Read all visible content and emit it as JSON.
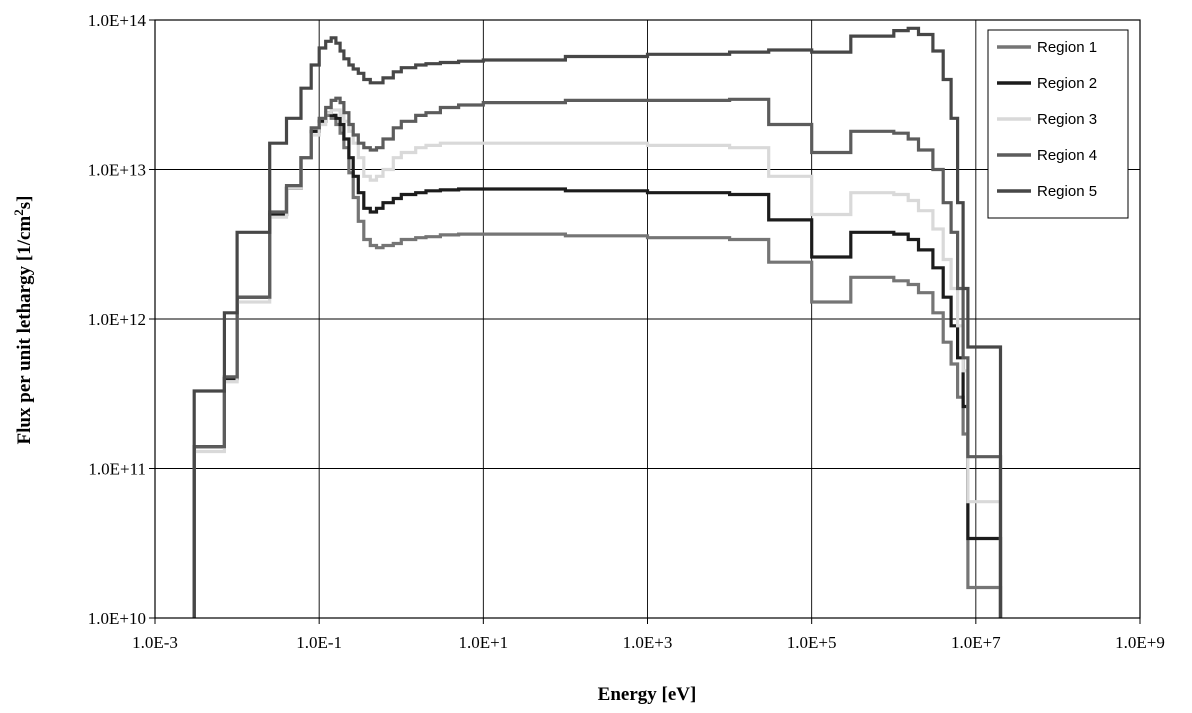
{
  "chart_data": {
    "type": "line",
    "title": "",
    "xlabel": "Energy [eV]",
    "ylabel_parts": {
      "pre": "Flux per unit lethargy [1/cm",
      "sup": "2",
      "post": "s]"
    },
    "x_scale": "log",
    "y_scale": "log",
    "xlim": [
      0.001,
      1000000000
    ],
    "ylim": [
      10000000000,
      100000000000000
    ],
    "grid": true,
    "legend_position": "top-right",
    "x_ticks": [
      {
        "value": 0.001,
        "label": "1.0E-3"
      },
      {
        "value": 0.1,
        "label": "1.0E-1"
      },
      {
        "value": 10,
        "label": "1.0E+1"
      },
      {
        "value": 1000,
        "label": "1.0E+3"
      },
      {
        "value": 100000,
        "label": "1.0E+5"
      },
      {
        "value": 10000000,
        "label": "1.0E+7"
      },
      {
        "value": 1000000000,
        "label": "1.0E+9"
      }
    ],
    "y_ticks": [
      {
        "value": 10000000000,
        "label": "1.0E+10"
      },
      {
        "value": 100000000000,
        "label": "1.0E+11"
      },
      {
        "value": 1000000000000,
        "label": "1.0E+12"
      },
      {
        "value": 10000000000000,
        "label": "1.0E+13"
      },
      {
        "value": 100000000000000,
        "label": "1.0E+14"
      }
    ],
    "x": [
      0.003,
      0.007,
      0.01,
      0.025,
      0.04,
      0.06,
      0.08,
      0.1,
      0.12,
      0.14,
      0.16,
      0.18,
      0.2,
      0.23,
      0.26,
      0.3,
      0.35,
      0.42,
      0.5,
      0.6,
      0.8,
      1.0,
      1.5,
      2.0,
      3.0,
      5.0,
      10,
      100,
      1000,
      10000,
      30000,
      100000,
      300000,
      1000000,
      1500000,
      2000000,
      3000000,
      4000000,
      5000000,
      6000000,
      7000000,
      8000000,
      20000000
    ],
    "series": [
      {
        "name": "Region 1",
        "color": "#757575",
        "values": [
          140000000000.0,
          400000000000.0,
          1400000000000.0,
          5000000000000.0,
          7500000000000.0,
          12000000000000.0,
          18000000000000.0,
          21000000000000.0,
          23000000000000.0,
          22000000000000.0,
          20000000000000.0,
          17500000000000.0,
          14000000000000.0,
          9500000000000.0,
          6500000000000.0,
          4500000000000.0,
          3400000000000.0,
          3100000000000.0,
          3000000000000.0,
          3100000000000.0,
          3200000000000.0,
          3400000000000.0,
          3500000000000.0,
          3550000000000.0,
          3650000000000.0,
          3700000000000.0,
          3700000000000.0,
          3600000000000.0,
          3500000000000.0,
          3400000000000.0,
          2400000000000.0,
          1300000000000.0,
          1900000000000.0,
          1800000000000.0,
          1700000000000.0,
          1500000000000.0,
          1100000000000.0,
          700000000000.0,
          500000000000.0,
          300000000000.0,
          170000000000.0,
          16000000000.0,
          16000000000.0
        ]
      },
      {
        "name": "Region 2",
        "color": "#1c1c1c",
        "values": [
          140000000000.0,
          400000000000.0,
          1400000000000.0,
          5000000000000.0,
          7500000000000.0,
          12000000000000.0,
          18000000000000.0,
          21000000000000.0,
          24000000000000.0,
          23000000000000.0,
          22000000000000.0,
          20000000000000.0,
          16000000000000.0,
          12000000000000.0,
          9000000000000.0,
          7000000000000.0,
          5500000000000.0,
          5200000000000.0,
          5500000000000.0,
          6000000000000.0,
          6400000000000.0,
          6800000000000.0,
          7000000000000.0,
          7200000000000.0,
          7300000000000.0,
          7400000000000.0,
          7400000000000.0,
          7200000000000.0,
          7000000000000.0,
          6800000000000.0,
          4600000000000.0,
          2600000000000.0,
          3800000000000.0,
          3700000000000.0,
          3400000000000.0,
          2900000000000.0,
          2200000000000.0,
          1400000000000.0,
          900000000000.0,
          550000000000.0,
          260000000000.0,
          34000000000.0,
          34000000000.0
        ]
      },
      {
        "name": "Region 3",
        "color": "#d9d9d9",
        "values": [
          130000000000.0,
          380000000000.0,
          1300000000000.0,
          4800000000000.0,
          7500000000000.0,
          12000000000000.0,
          17000000000000.0,
          20000000000000.0,
          24000000000000.0,
          25000000000000.0,
          25000000000000.0,
          23000000000000.0,
          21000000000000.0,
          18000000000000.0,
          15000000000000.0,
          12000000000000.0,
          9000000000000.0,
          8500000000000.0,
          9000000000000.0,
          10000000000000.0,
          12000000000000.0,
          13000000000000.0,
          14000000000000.0,
          14500000000000.0,
          15000000000000.0,
          15000000000000.0,
          15000000000000.0,
          15000000000000.0,
          14500000000000.0,
          14000000000000.0,
          9000000000000.0,
          5000000000000.0,
          7000000000000.0,
          6800000000000.0,
          6200000000000.0,
          5300000000000.0,
          4000000000000.0,
          2500000000000.0,
          1600000000000.0,
          900000000000.0,
          450000000000.0,
          60000000000.0,
          60000000000.0
        ]
      },
      {
        "name": "Region 4",
        "color": "#5c5c5c",
        "values": [
          140000000000.0,
          410000000000.0,
          1400000000000.0,
          5200000000000.0,
          7800000000000.0,
          12000000000000.0,
          19000000000000.0,
          22000000000000.0,
          26000000000000.0,
          29000000000000.0,
          30000000000000.0,
          28000000000000.0,
          24000000000000.0,
          20000000000000.0,
          17000000000000.0,
          15000000000000.0,
          14000000000000.0,
          13500000000000.0,
          14000000000000.0,
          16000000000000.0,
          19000000000000.0,
          21000000000000.0,
          23000000000000.0,
          24000000000000.0,
          26000000000000.0,
          27000000000000.0,
          28000000000000.0,
          29000000000000.0,
          29000000000000.0,
          29500000000000.0,
          20000000000000.0,
          13000000000000.0,
          18000000000000.0,
          17500000000000.0,
          16000000000000.0,
          13500000000000.0,
          10000000000000.0,
          6000000000000.0,
          3800000000000.0,
          1600000000000.0,
          550000000000.0,
          120000000000.0,
          120000000000.0
        ]
      },
      {
        "name": "Region 5",
        "color": "#474747",
        "values": [
          330000000000.0,
          1100000000000.0,
          3800000000000.0,
          15000000000000.0,
          22000000000000.0,
          35000000000000.0,
          50000000000000.0,
          65000000000000.0,
          72000000000000.0,
          76000000000000.0,
          70000000000000.0,
          62000000000000.0,
          55000000000000.0,
          50000000000000.0,
          47000000000000.0,
          44000000000000.0,
          40000000000000.0,
          38000000000000.0,
          38000000000000.0,
          41000000000000.0,
          45000000000000.0,
          48000000000000.0,
          50000000000000.0,
          51000000000000.0,
          52000000000000.0,
          53000000000000.0,
          54000000000000.0,
          57000000000000.0,
          59000000000000.0,
          61000000000000.0,
          63000000000000.0,
          61000000000000.0,
          78000000000000.0,
          85000000000000.0,
          88000000000000.0,
          80000000000000.0,
          62000000000000.0,
          40000000000000.0,
          22000000000000.0,
          6000000000000.0,
          1600000000000.0,
          650000000000.0,
          650000000000.0
        ]
      }
    ]
  }
}
